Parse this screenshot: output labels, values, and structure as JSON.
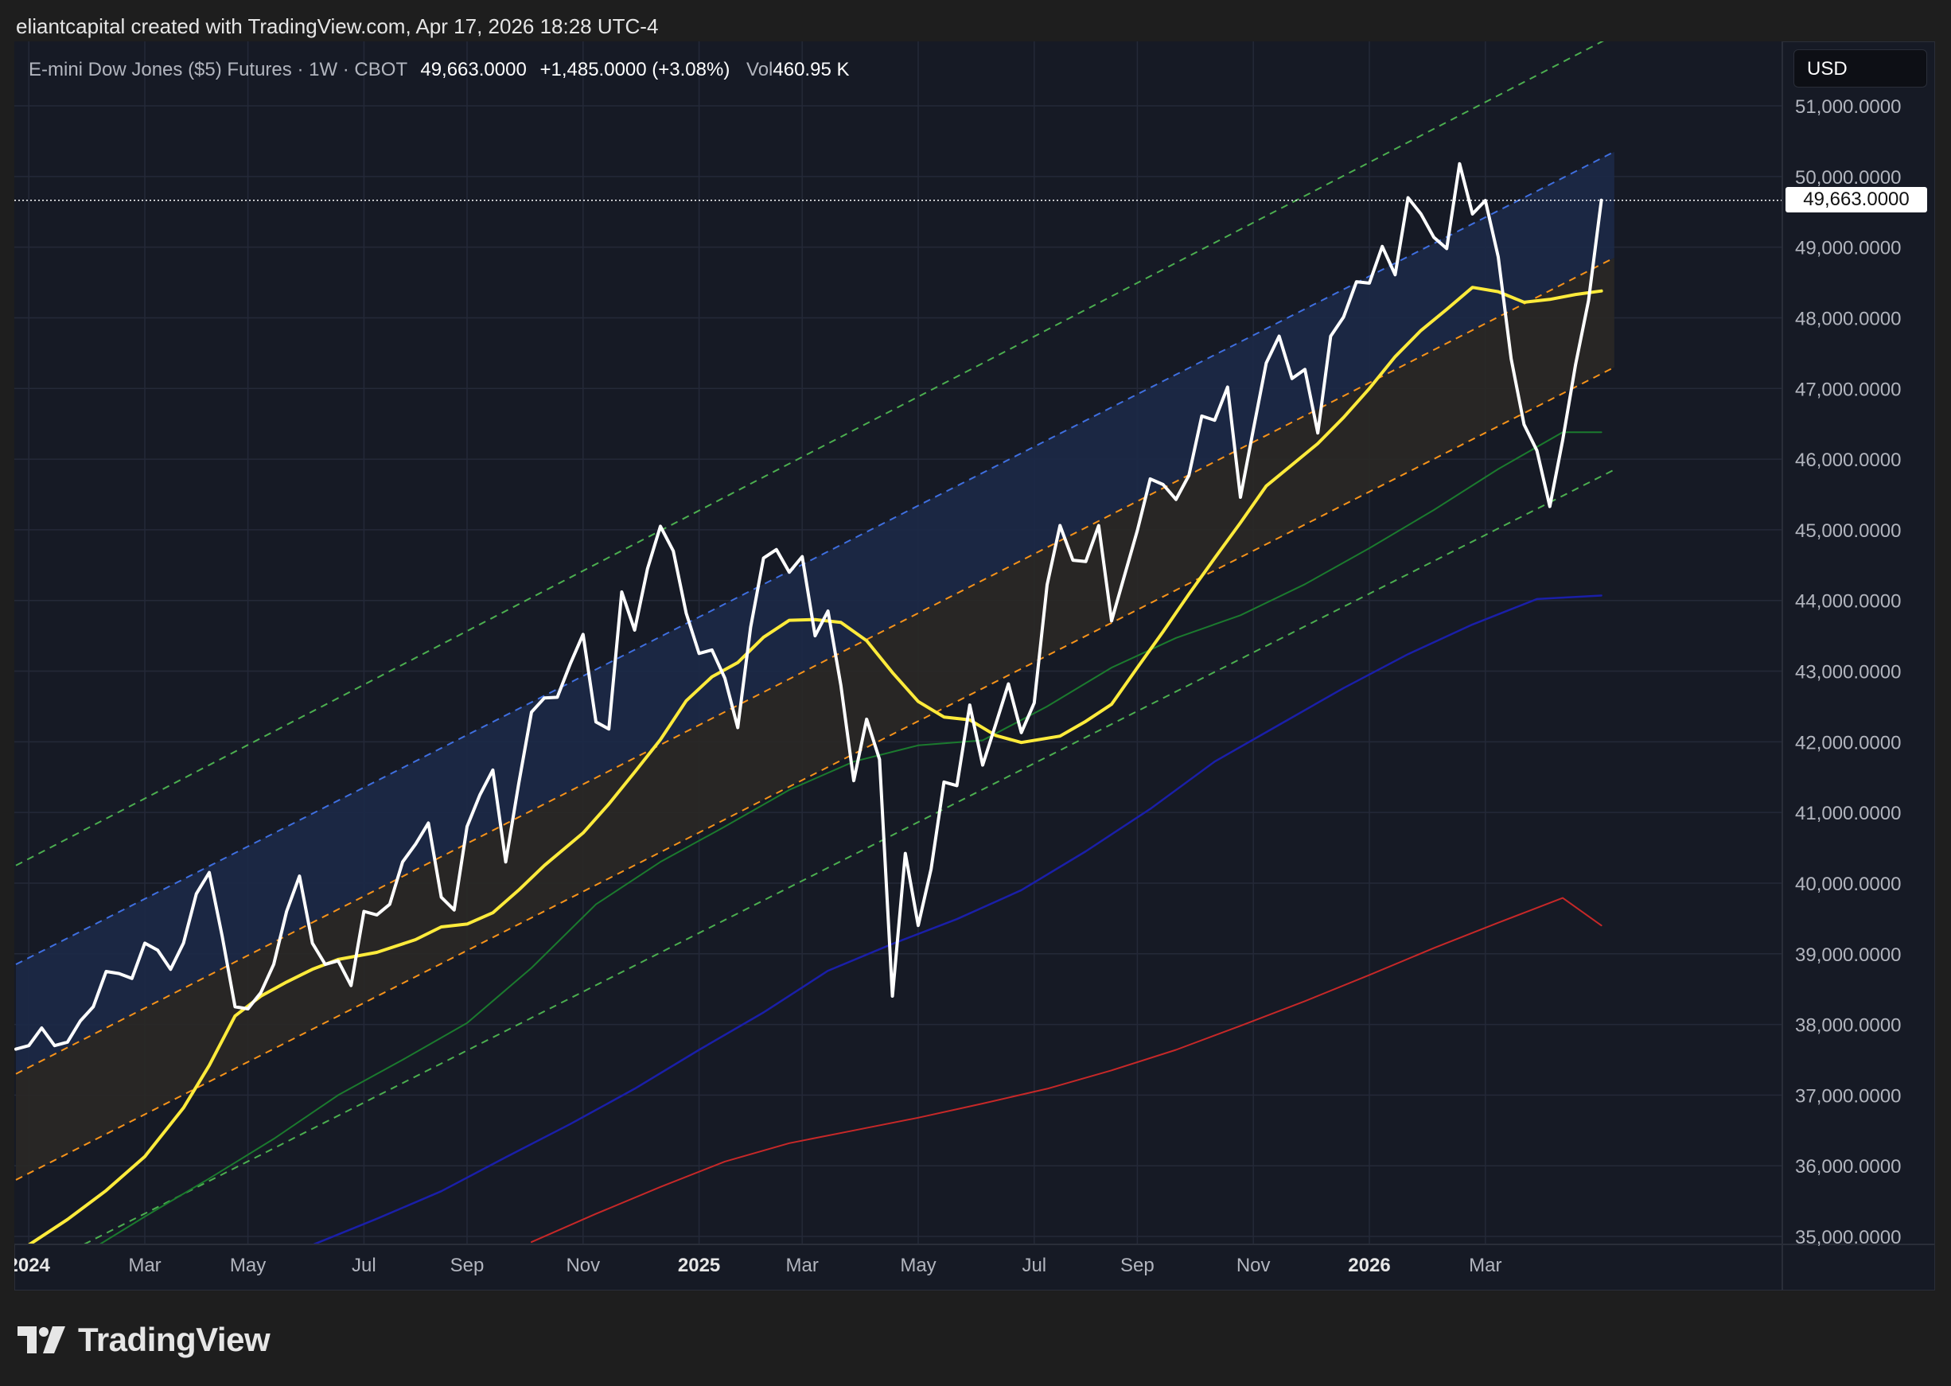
{
  "caption": "eliantcapital created with TradingView.com, Apr 17, 2026 18:28 UTC-4",
  "legend": {
    "instrument": "E-mini Dow Jones ($5) Futures · 1W · CBOT",
    "last": "49,663.0000",
    "change": "+1,485.0000 (+3.08%)",
    "vol_label": "Vol",
    "vol_value": "460.95 K"
  },
  "currency": "USD",
  "brand": {
    "name": "TradingView",
    "logo": "tradingview-logo-icon"
  },
  "colors": {
    "price": "#ffffff",
    "ema_yellow": "#ffeb3b",
    "ma_green": "#1b7a2e",
    "ma_blue": "#1a1fa8",
    "ma_red": "#c62828",
    "channel_green": "#4caf50",
    "channel_blue": "#3f6fe0",
    "channel_orange": "#f7931a",
    "blue_band_fill": "#1c2947",
    "orange_band_fill": "#2a2826"
  },
  "chart_data": {
    "type": "line",
    "title": "E-mini Dow Jones ($5) Futures · 1W · CBOT",
    "ylabel": "USD",
    "ylim": [
      34900,
      52000
    ],
    "y_ticks": [
      "51,000.0000",
      "50,000.0000",
      "49,000.0000",
      "48,000.0000",
      "47,000.0000",
      "46,000.0000",
      "45,000.0000",
      "44,000.0000",
      "43,000.0000",
      "42,000.0000",
      "41,000.0000",
      "40,000.0000",
      "39,000.0000",
      "38,000.0000",
      "37,000.0000",
      "36,000.0000",
      "35,000.0000"
    ],
    "x_ticks": [
      {
        "label": "2024",
        "bold": true,
        "week": 1
      },
      {
        "label": "Mar",
        "week": 10
      },
      {
        "label": "May",
        "week": 18
      },
      {
        "label": "Jul",
        "week": 27
      },
      {
        "label": "Sep",
        "week": 35
      },
      {
        "label": "Nov",
        "week": 44
      },
      {
        "label": "2025",
        "bold": true,
        "week": 53
      },
      {
        "label": "Mar",
        "week": 61
      },
      {
        "label": "May",
        "week": 70
      },
      {
        "label": "Jul",
        "week": 79
      },
      {
        "label": "Sep",
        "week": 87
      },
      {
        "label": "Nov",
        "week": 96
      },
      {
        "label": "2026",
        "bold": true,
        "week": 105
      },
      {
        "label": "Mar",
        "week": 114
      }
    ],
    "last_price_label": "49,663.0000",
    "last_price": 49663,
    "grid": true,
    "series": [
      {
        "key": "price",
        "points": [
          [
            0,
            37650
          ],
          [
            1,
            37700
          ],
          [
            2,
            37950
          ],
          [
            3,
            37700
          ],
          [
            4,
            37750
          ],
          [
            5,
            38050
          ],
          [
            6,
            38250
          ],
          [
            7,
            38750
          ],
          [
            8,
            38720
          ],
          [
            9,
            38650
          ],
          [
            10,
            39150
          ],
          [
            11,
            39050
          ],
          [
            12,
            38780
          ],
          [
            13,
            39150
          ],
          [
            14,
            39850
          ],
          [
            15,
            40150
          ],
          [
            16,
            39250
          ],
          [
            17,
            38250
          ],
          [
            18,
            38220
          ],
          [
            19,
            38450
          ],
          [
            20,
            38850
          ],
          [
            21,
            39600
          ],
          [
            22,
            40100
          ],
          [
            23,
            39150
          ],
          [
            24,
            38850
          ],
          [
            25,
            38900
          ],
          [
            26,
            38550
          ],
          [
            27,
            39600
          ],
          [
            28,
            39550
          ],
          [
            29,
            39700
          ],
          [
            30,
            40300
          ],
          [
            31,
            40550
          ],
          [
            32,
            40850
          ],
          [
            33,
            39800
          ],
          [
            34,
            39620
          ],
          [
            35,
            40800
          ],
          [
            36,
            41250
          ],
          [
            37,
            41600
          ],
          [
            38,
            40300
          ],
          [
            39,
            41400
          ],
          [
            40,
            42420
          ],
          [
            41,
            42620
          ],
          [
            42,
            42630
          ],
          [
            43,
            43100
          ],
          [
            44,
            43520
          ],
          [
            45,
            42280
          ],
          [
            46,
            42180
          ],
          [
            47,
            44120
          ],
          [
            48,
            43580
          ],
          [
            49,
            44450
          ],
          [
            50,
            45050
          ],
          [
            51,
            44700
          ],
          [
            52,
            43820
          ],
          [
            53,
            43250
          ],
          [
            54,
            43300
          ],
          [
            55,
            42900
          ],
          [
            56,
            42200
          ],
          [
            57,
            43620
          ],
          [
            58,
            44600
          ],
          [
            59,
            44720
          ],
          [
            60,
            44400
          ],
          [
            61,
            44620
          ],
          [
            62,
            43500
          ],
          [
            63,
            43850
          ],
          [
            64,
            42800
          ],
          [
            65,
            41450
          ],
          [
            66,
            42320
          ],
          [
            67,
            41750
          ],
          [
            68,
            38400
          ],
          [
            69,
            40420
          ],
          [
            70,
            39400
          ],
          [
            71,
            40200
          ],
          [
            72,
            41430
          ],
          [
            73,
            41380
          ],
          [
            74,
            42520
          ],
          [
            75,
            41670
          ],
          [
            76,
            42240
          ],
          [
            77,
            42820
          ],
          [
            78,
            42130
          ],
          [
            79,
            42550
          ],
          [
            80,
            44220
          ],
          [
            81,
            45060
          ],
          [
            82,
            44570
          ],
          [
            83,
            44550
          ],
          [
            84,
            45060
          ],
          [
            85,
            43710
          ],
          [
            86,
            44350
          ],
          [
            87,
            44990
          ],
          [
            88,
            45720
          ],
          [
            89,
            45640
          ],
          [
            90,
            45430
          ],
          [
            91,
            45770
          ],
          [
            92,
            46610
          ],
          [
            93,
            46550
          ],
          [
            94,
            47020
          ],
          [
            95,
            45460
          ],
          [
            96,
            46420
          ],
          [
            97,
            47360
          ],
          [
            98,
            47740
          ],
          [
            99,
            47140
          ],
          [
            100,
            47270
          ],
          [
            101,
            46370
          ],
          [
            102,
            47740
          ],
          [
            103,
            48010
          ],
          [
            104,
            48510
          ],
          [
            105,
            48490
          ],
          [
            106,
            49010
          ],
          [
            107,
            48610
          ],
          [
            108,
            49700
          ],
          [
            109,
            49470
          ],
          [
            110,
            49140
          ],
          [
            111,
            48980
          ],
          [
            112,
            50180
          ],
          [
            113,
            49470
          ],
          [
            114,
            49660
          ],
          [
            115,
            48860
          ],
          [
            116,
            47420
          ],
          [
            117,
            46490
          ],
          [
            118,
            46120
          ],
          [
            119,
            45330
          ],
          [
            120,
            46270
          ],
          [
            121,
            47340
          ],
          [
            122,
            48240
          ],
          [
            123,
            49663
          ]
        ]
      },
      {
        "key": "ema_yellow",
        "points": [
          [
            1,
            34880
          ],
          [
            4,
            35240
          ],
          [
            7,
            35650
          ],
          [
            10,
            36130
          ],
          [
            13,
            36820
          ],
          [
            15,
            37420
          ],
          [
            17,
            38120
          ],
          [
            19,
            38400
          ],
          [
            21,
            38600
          ],
          [
            23,
            38780
          ],
          [
            25,
            38920
          ],
          [
            28,
            39020
          ],
          [
            31,
            39200
          ],
          [
            33,
            39380
          ],
          [
            35,
            39420
          ],
          [
            37,
            39580
          ],
          [
            39,
            39900
          ],
          [
            41,
            40250
          ],
          [
            44,
            40710
          ],
          [
            46,
            41120
          ],
          [
            48,
            41570
          ],
          [
            50,
            42030
          ],
          [
            52,
            42580
          ],
          [
            54,
            42920
          ],
          [
            56,
            43120
          ],
          [
            58,
            43480
          ],
          [
            60,
            43720
          ],
          [
            62,
            43730
          ],
          [
            64,
            43690
          ],
          [
            66,
            43430
          ],
          [
            68,
            42980
          ],
          [
            70,
            42570
          ],
          [
            72,
            42350
          ],
          [
            74,
            42310
          ],
          [
            76,
            42090
          ],
          [
            78,
            41990
          ],
          [
            81,
            42080
          ],
          [
            83,
            42290
          ],
          [
            85,
            42530
          ],
          [
            87,
            43050
          ],
          [
            89,
            43560
          ],
          [
            91,
            44090
          ],
          [
            93,
            44600
          ],
          [
            95,
            45100
          ],
          [
            97,
            45620
          ],
          [
            99,
            45920
          ],
          [
            101,
            46220
          ],
          [
            103,
            46590
          ],
          [
            105,
            47000
          ],
          [
            107,
            47450
          ],
          [
            109,
            47820
          ],
          [
            111,
            48120
          ],
          [
            113,
            48430
          ],
          [
            115,
            48370
          ],
          [
            117,
            48220
          ],
          [
            119,
            48260
          ],
          [
            121,
            48330
          ],
          [
            123,
            48380
          ]
        ]
      },
      {
        "key": "ma_green",
        "points": [
          [
            5,
            34720
          ],
          [
            10,
            35280
          ],
          [
            15,
            35820
          ],
          [
            20,
            36380
          ],
          [
            25,
            37000
          ],
          [
            30,
            37500
          ],
          [
            35,
            38020
          ],
          [
            40,
            38800
          ],
          [
            45,
            39700
          ],
          [
            50,
            40300
          ],
          [
            55,
            40800
          ],
          [
            60,
            41320
          ],
          [
            65,
            41720
          ],
          [
            70,
            41950
          ],
          [
            75,
            42020
          ],
          [
            80,
            42500
          ],
          [
            85,
            43050
          ],
          [
            90,
            43470
          ],
          [
            95,
            43790
          ],
          [
            100,
            44230
          ],
          [
            105,
            44740
          ],
          [
            110,
            45280
          ],
          [
            115,
            45860
          ],
          [
            120,
            46380
          ],
          [
            123,
            46380
          ]
        ]
      },
      {
        "key": "ma_blue",
        "points": [
          [
            23,
            34880
          ],
          [
            28,
            35250
          ],
          [
            33,
            35640
          ],
          [
            38,
            36120
          ],
          [
            43,
            36590
          ],
          [
            48,
            37090
          ],
          [
            53,
            37640
          ],
          [
            58,
            38170
          ],
          [
            63,
            38760
          ],
          [
            68,
            39140
          ],
          [
            73,
            39490
          ],
          [
            78,
            39900
          ],
          [
            83,
            40450
          ],
          [
            88,
            41050
          ],
          [
            93,
            41720
          ],
          [
            98,
            42240
          ],
          [
            103,
            42760
          ],
          [
            108,
            43240
          ],
          [
            113,
            43660
          ],
          [
            118,
            44020
          ],
          [
            123,
            44070
          ]
        ]
      },
      {
        "key": "ma_red",
        "points": [
          [
            40,
            34920
          ],
          [
            45,
            35320
          ],
          [
            50,
            35700
          ],
          [
            55,
            36060
          ],
          [
            60,
            36320
          ],
          [
            65,
            36500
          ],
          [
            70,
            36680
          ],
          [
            75,
            36880
          ],
          [
            80,
            37090
          ],
          [
            85,
            37350
          ],
          [
            90,
            37640
          ],
          [
            95,
            37980
          ],
          [
            100,
            38330
          ],
          [
            105,
            38700
          ],
          [
            110,
            39080
          ],
          [
            115,
            39440
          ],
          [
            120,
            39790
          ],
          [
            123,
            39400
          ]
        ]
      }
    ],
    "channel_lines": [
      {
        "key": "channel_green_upper",
        "start": [
          0,
          40250
        ],
        "end": [
          124,
          52000
        ]
      },
      {
        "key": "channel_blue_upper",
        "start": [
          0,
          38850
        ],
        "end": [
          124,
          50350
        ]
      },
      {
        "key": "channel_orange_upper",
        "start": [
          0,
          37300
        ],
        "end": [
          124,
          48850
        ]
      },
      {
        "key": "channel_orange_lower",
        "start": [
          0,
          35800
        ],
        "end": [
          124,
          47300
        ]
      },
      {
        "key": "channel_green_lower",
        "start": [
          0,
          34400
        ],
        "end": [
          124,
          45850
        ]
      }
    ]
  }
}
